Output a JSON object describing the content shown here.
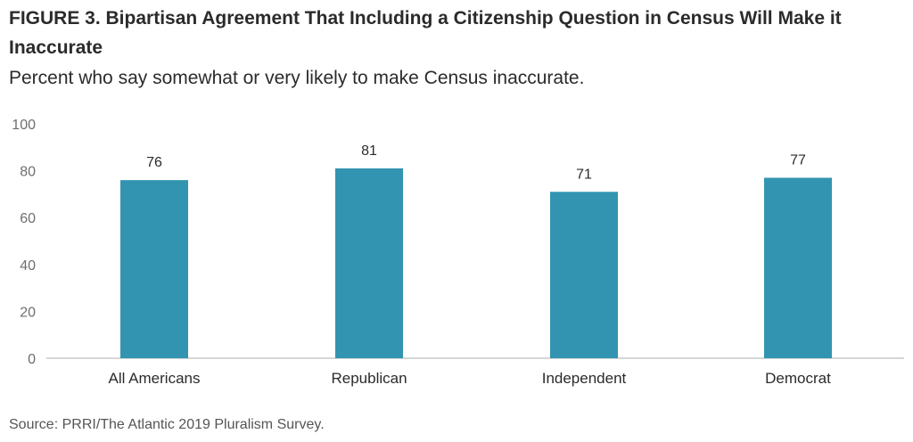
{
  "title": "FIGURE 3. Bipartisan Agreement That Including a Citizenship Question in Census Will Make it Inaccurate",
  "subtitle": "Percent who say somewhat or very likely to make Census inaccurate.",
  "source": "Source: PRRI/The Atlantic 2019 Pluralism Survey.",
  "colors": {
    "bar": "#3294b0",
    "axis": "#c8c8c8"
  },
  "chart_data": {
    "type": "bar",
    "categories": [
      "All Americans",
      "Republican",
      "Independent",
      "Democrat"
    ],
    "values": [
      76,
      81,
      71,
      77
    ],
    "data_labels": [
      "76",
      "81",
      "71",
      "77"
    ],
    "yticks": [
      "0",
      "20",
      "40",
      "60",
      "80",
      "100"
    ],
    "ylim": [
      0,
      100
    ],
    "grid": false,
    "legend": "none"
  }
}
